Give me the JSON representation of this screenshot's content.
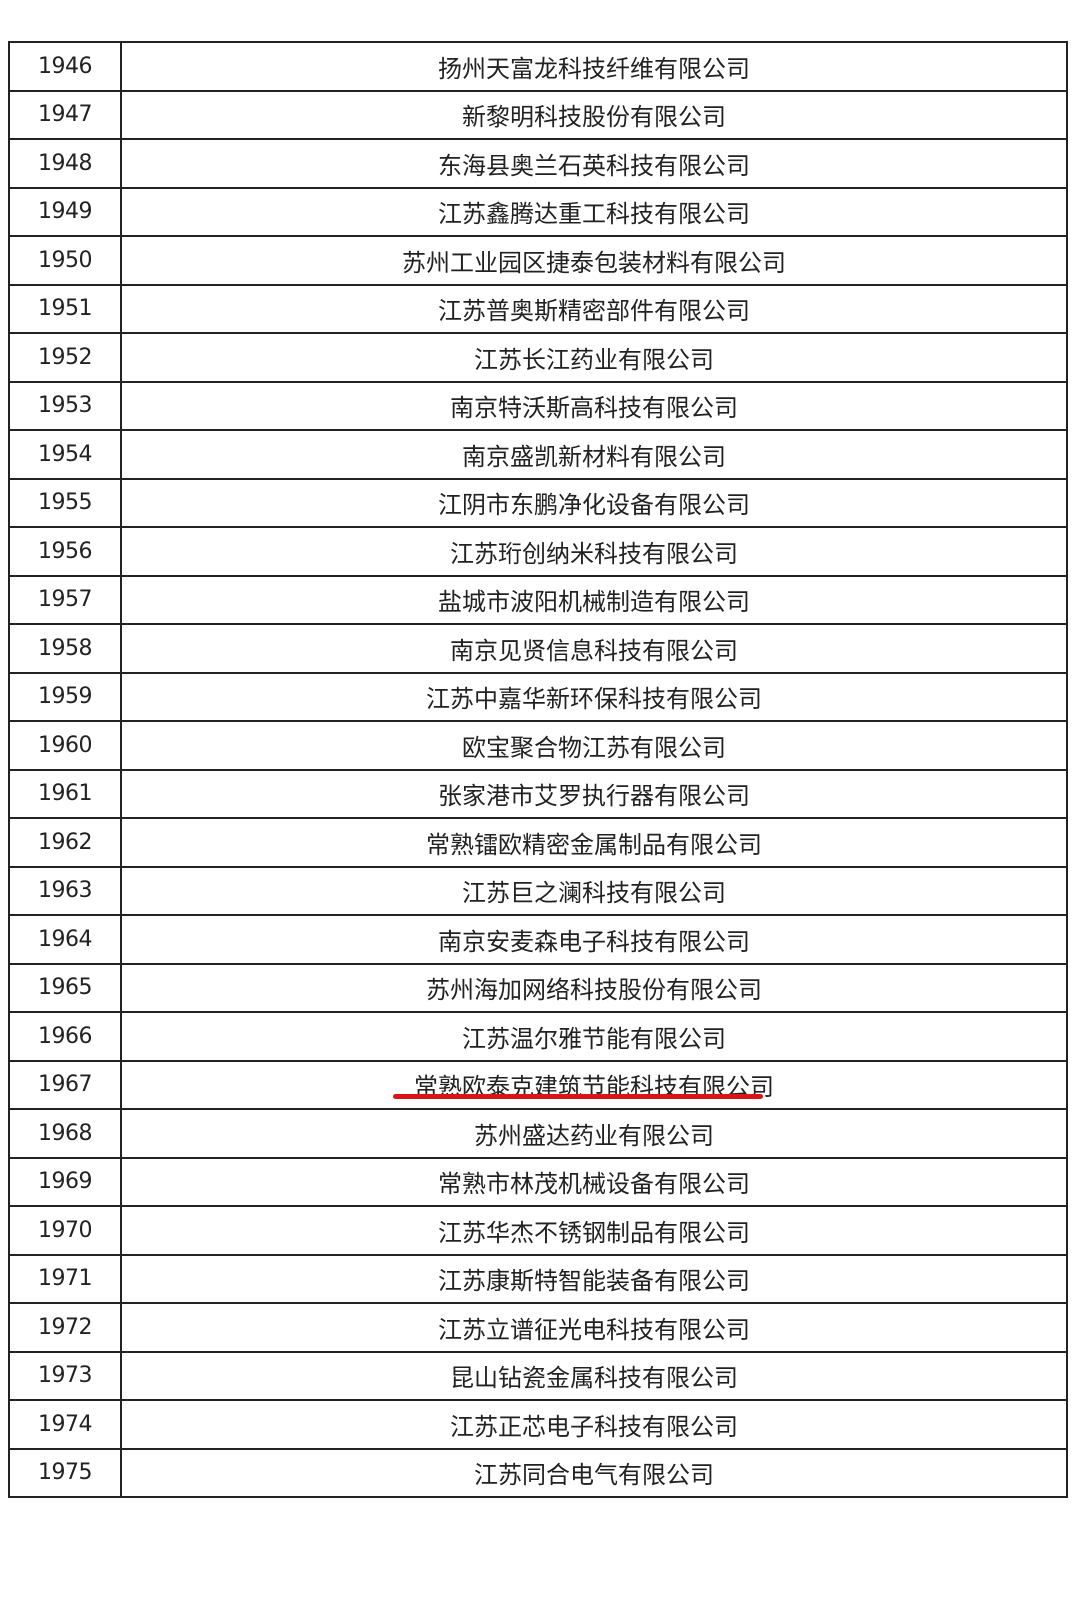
{
  "table": {
    "rows": [
      [
        "1946",
        "扬州天富龙科技纤维有限公司"
      ],
      [
        "1947",
        "新黎明科技股份有限公司"
      ],
      [
        "1948",
        "东海县奥兰石英科技有限公司"
      ],
      [
        "1949",
        "江苏鑫腾达重工科技有限公司"
      ],
      [
        "1950",
        "苏州工业园区捷泰包装材料有限公司"
      ],
      [
        "1951",
        "江苏普奥斯精密部件有限公司"
      ],
      [
        "1952",
        "江苏长江药业有限公司"
      ],
      [
        "1953",
        "南京特沃斯高科技有限公司"
      ],
      [
        "1954",
        "南京盛凯新材料有限公司"
      ],
      [
        "1955",
        "江阴市东鹏净化设备有限公司"
      ],
      [
        "1956",
        "江苏珩创纳米科技有限公司"
      ],
      [
        "1957",
        "盐城市波阳机械制造有限公司"
      ],
      [
        "1958",
        "南京见贤信息科技有限公司"
      ],
      [
        "1959",
        "江苏中嘉华新环保科技有限公司"
      ],
      [
        "1960",
        "欧宝聚合物江苏有限公司"
      ],
      [
        "1961",
        "张家港市艾罗执行器有限公司"
      ],
      [
        "1962",
        "常熟镭欧精密金属制品有限公司"
      ],
      [
        "1963",
        "江苏巨之澜科技有限公司"
      ],
      [
        "1964",
        "南京安麦森电子科技有限公司"
      ],
      [
        "1965",
        "苏州海加网络科技股份有限公司"
      ],
      [
        "1966",
        "江苏温尔雅节能有限公司"
      ],
      [
        "1967",
        "常熟欧泰克建筑节能科技有限公司"
      ],
      [
        "1968",
        "苏州盛达药业有限公司"
      ],
      [
        "1969",
        "常熟市林茂机械设备有限公司"
      ],
      [
        "1970",
        "江苏华杰不锈钢制品有限公司"
      ],
      [
        "1971",
        "江苏康斯特智能装备有限公司"
      ],
      [
        "1972",
        "江苏立谱征光电科技有限公司"
      ],
      [
        "1973",
        "昆山钻瓷金属科技有限公司"
      ],
      [
        "1974",
        "江苏正芯电子科技有限公司"
      ],
      [
        "1975",
        "江苏同合电气有限公司"
      ]
    ]
  }
}
